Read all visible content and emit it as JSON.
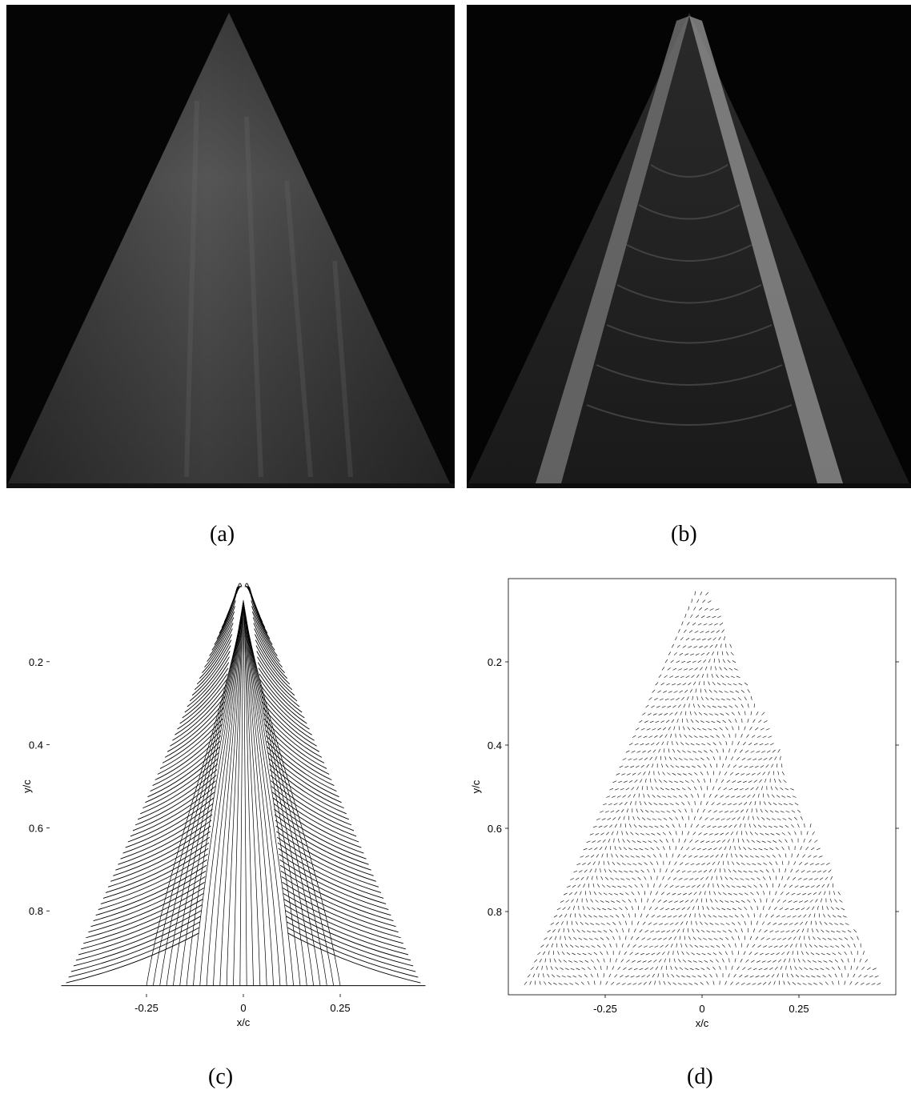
{
  "figure": {
    "panels": [
      {
        "id": "a",
        "caption": "(a)",
        "kind": "photograph",
        "description_icon": "delta-wing-surface-photo-icon"
      },
      {
        "id": "b",
        "caption": "(b)",
        "kind": "photograph",
        "description_icon": "delta-wing-flow-visualization-photo-icon"
      },
      {
        "id": "c",
        "caption": "(c)",
        "kind": "streamline-plot"
      },
      {
        "id": "d",
        "caption": "(d)",
        "kind": "vector-field-plot"
      }
    ]
  },
  "chart_data": [
    {
      "type": "streamline",
      "title": "",
      "xlabel": "x/c",
      "ylabel": "y/c",
      "xticks": [
        -0.25,
        0,
        0.25
      ],
      "xtick_labels": [
        "-0.25",
        "0",
        "0.25"
      ],
      "yticks": [
        0.2,
        0.4,
        0.6,
        0.8
      ],
      "ytick_labels": [
        "0.2",
        "0.4",
        "0.6",
        "0.8"
      ],
      "xlim": [
        -0.5,
        0.5
      ],
      "ylim": [
        1.0,
        0.0
      ],
      "grid": false,
      "color": "#000000",
      "region": "triangular delta-wing planform, apex at x/c=0, y/c≈0"
    },
    {
      "type": "quiver",
      "title": "",
      "xlabel": "x/c",
      "ylabel": "y/c",
      "xticks": [
        -0.25,
        0,
        0.25
      ],
      "xtick_labels": [
        "-0.25",
        "0",
        "0.25"
      ],
      "yticks": [
        0.2,
        0.4,
        0.6,
        0.8
      ],
      "ytick_labels": [
        "0.2",
        "0.4",
        "0.6",
        "0.8"
      ],
      "xlim": [
        -0.5,
        0.5
      ],
      "ylim": [
        1.0,
        0.0
      ],
      "grid": false,
      "box": true,
      "color": "#000000",
      "region": "triangular delta-wing planform, apex at x/c=0, y/c≈0"
    }
  ]
}
